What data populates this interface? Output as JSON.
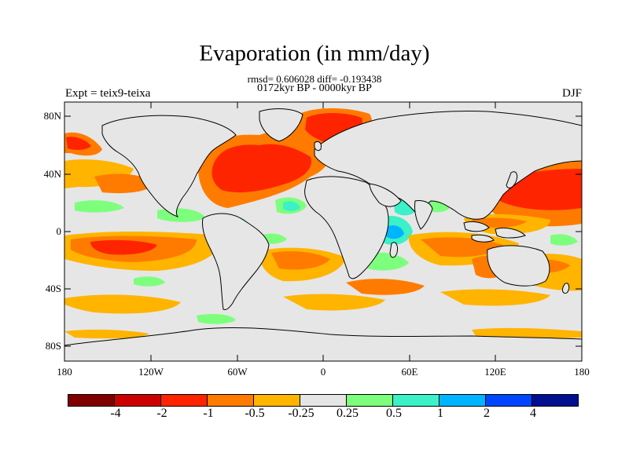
{
  "header": {
    "title": "Evaporation (in mm/day)",
    "stats": "rmsd= 0.606028 diff= -0.193438",
    "period": "0172kyr BP - 0000kyr BP",
    "experiment": "Expt = teix9-teixa",
    "season": "DJF"
  },
  "axes": {
    "y_ticks": [
      "80N",
      "40N",
      "0",
      "40S",
      "80S"
    ],
    "x_ticks": [
      "180",
      "120W",
      "60W",
      "0",
      "60E",
      "120E",
      "180"
    ]
  },
  "colorbar": {
    "labels": [
      "-4",
      "-2",
      "-1",
      "-0.5",
      "-0.25",
      "0.25",
      "0.5",
      "1",
      "2",
      "4"
    ],
    "colors": [
      "#800000",
      "#cc0000",
      "#ff2400",
      "#ff7b00",
      "#ffb400",
      "#e5e5e5",
      "#7dff7d",
      "#3cf0c8",
      "#00b4ff",
      "#0046ff",
      "#001090"
    ]
  },
  "palette": {
    "ocean_neutral": "#e6e6e6",
    "coast": "#000000"
  }
}
